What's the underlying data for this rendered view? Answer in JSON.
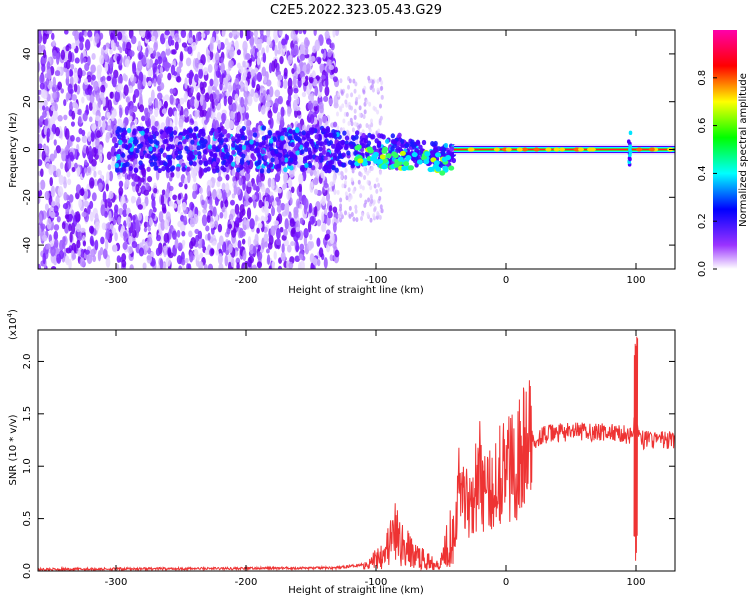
{
  "title": "C2E5.2022.323.05.43.G29",
  "chart_data": [
    {
      "type": "heatmap",
      "xlabel": "Height of straight line (km)",
      "ylabel": "Frequency (Hz)",
      "xlim": [
        -360,
        130
      ],
      "ylim": [
        -50,
        50
      ],
      "xticks": [
        "-300",
        "-200",
        "-100",
        "0",
        "100"
      ],
      "xtick_values": [
        -300,
        -200,
        -100,
        0,
        100
      ],
      "yticks": [
        "-40",
        "-20",
        "0",
        "20",
        "40"
      ],
      "ytick_values": [
        -40,
        -20,
        0,
        20,
        40
      ],
      "colorbar": {
        "label": "Normalized spectral amplitude",
        "range": [
          0,
          1
        ],
        "ticks": [
          "0.0",
          "0.2",
          "0.4",
          "0.6",
          "0.8"
        ],
        "tick_values": [
          0,
          0.2,
          0.4,
          0.6,
          0.8
        ],
        "colormap": [
          "#ffffff",
          "#7b00ff",
          "#0000ff",
          "#00ffff",
          "#00ff00",
          "#ffff00",
          "#ff0000",
          "#ff00aa"
        ]
      },
      "description": "Broadband noise across all frequencies below -130 km; energy concentrates near 0 Hz from about -130 to -40 km; a narrow strong line at 0 Hz from about -40 km onward with a short broadband spike near 95 km.",
      "noise_extent_km": [
        -360,
        -130
      ],
      "carrier_start_km": -40,
      "spike_km": 95
    },
    {
      "type": "line",
      "xlabel": "Height of straight line (km)",
      "ylabel": "SNR (10 * v/v)",
      "y_multiplier": "(x10",
      "y_multiplier_exp": "4",
      "y_multiplier_close": ")",
      "xlim": [
        -360,
        130
      ],
      "ylim": [
        0,
        23000
      ],
      "xticks": [
        "-300",
        "-200",
        "-100",
        "0",
        "100"
      ],
      "xtick_values": [
        -300,
        -200,
        -100,
        0,
        100
      ],
      "yticks": [
        "0.0",
        "0.5",
        "1.0",
        "1.5",
        "2.0"
      ],
      "ytick_values": [
        0,
        5000,
        10000,
        15000,
        20000
      ],
      "series_color": "#ee3333",
      "series": [
        {
          "x": [
            -360,
            -300,
            -200,
            -130,
            -105,
            -98,
            -90,
            -85,
            -80,
            -70,
            -60,
            -50,
            -45,
            -40,
            -35,
            -30,
            -25,
            -20,
            -15,
            -10,
            -5,
            0,
            10,
            20,
            30,
            40,
            60,
            80,
            95,
            100,
            105,
            110,
            120,
            130
          ],
          "y": [
            150,
            200,
            250,
            300,
            700,
            1500,
            2500,
            3500,
            2500,
            1500,
            900,
            800,
            3000,
            4000,
            9000,
            6500,
            7500,
            9500,
            7000,
            8000,
            10000,
            9500,
            11000,
            12500,
            13000,
            13200,
            13300,
            13200,
            13000,
            14000,
            12500,
            12600,
            12500,
            12400
          ]
        }
      ],
      "annotations": [
        {
          "x": 100,
          "y_min": 700,
          "y_max": 23000
        }
      ]
    }
  ]
}
